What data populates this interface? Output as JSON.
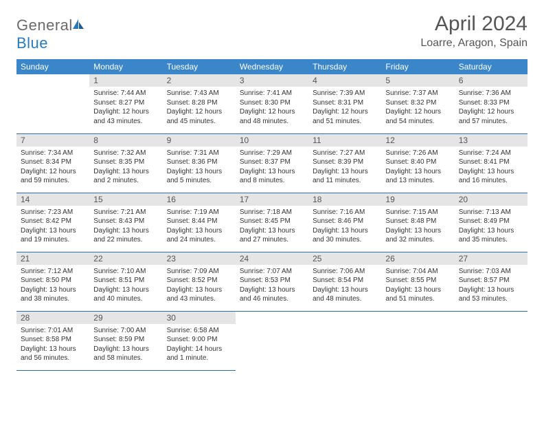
{
  "colors": {
    "header_bg": "#3a86c8",
    "header_text": "#ffffff",
    "daynum_bg": "#e5e5e5",
    "daynum_text": "#555555",
    "cell_border": "#2f6aa3",
    "body_text": "#333333",
    "title_text": "#555555",
    "logo_gray": "#6a6a6a",
    "logo_blue": "#2a7ab8",
    "page_bg": "#ffffff"
  },
  "fonts": {
    "family": "Arial, Helvetica, sans-serif",
    "month_title_size": 30,
    "location_size": 16,
    "weekday_size": 12,
    "daynum_size": 12,
    "body_size": 10
  },
  "logo": {
    "text_gray": "General",
    "text_blue": "Blue"
  },
  "title": "April 2024",
  "location": "Loarre, Aragon, Spain",
  "weekdays": [
    "Sunday",
    "Monday",
    "Tuesday",
    "Wednesday",
    "Thursday",
    "Friday",
    "Saturday"
  ],
  "calendar": {
    "type": "table",
    "columns": 7,
    "rows": 5,
    "cell_border_color": "#2f6aa3",
    "daynum_bg": "#e5e5e5"
  },
  "weeks": [
    [
      null,
      {
        "n": "1",
        "sr": "Sunrise: 7:44 AM",
        "ss": "Sunset: 8:27 PM",
        "d1": "Daylight: 12 hours",
        "d2": "and 43 minutes."
      },
      {
        "n": "2",
        "sr": "Sunrise: 7:43 AM",
        "ss": "Sunset: 8:28 PM",
        "d1": "Daylight: 12 hours",
        "d2": "and 45 minutes."
      },
      {
        "n": "3",
        "sr": "Sunrise: 7:41 AM",
        "ss": "Sunset: 8:30 PM",
        "d1": "Daylight: 12 hours",
        "d2": "and 48 minutes."
      },
      {
        "n": "4",
        "sr": "Sunrise: 7:39 AM",
        "ss": "Sunset: 8:31 PM",
        "d1": "Daylight: 12 hours",
        "d2": "and 51 minutes."
      },
      {
        "n": "5",
        "sr": "Sunrise: 7:37 AM",
        "ss": "Sunset: 8:32 PM",
        "d1": "Daylight: 12 hours",
        "d2": "and 54 minutes."
      },
      {
        "n": "6",
        "sr": "Sunrise: 7:36 AM",
        "ss": "Sunset: 8:33 PM",
        "d1": "Daylight: 12 hours",
        "d2": "and 57 minutes."
      }
    ],
    [
      {
        "n": "7",
        "sr": "Sunrise: 7:34 AM",
        "ss": "Sunset: 8:34 PM",
        "d1": "Daylight: 12 hours",
        "d2": "and 59 minutes."
      },
      {
        "n": "8",
        "sr": "Sunrise: 7:32 AM",
        "ss": "Sunset: 8:35 PM",
        "d1": "Daylight: 13 hours",
        "d2": "and 2 minutes."
      },
      {
        "n": "9",
        "sr": "Sunrise: 7:31 AM",
        "ss": "Sunset: 8:36 PM",
        "d1": "Daylight: 13 hours",
        "d2": "and 5 minutes."
      },
      {
        "n": "10",
        "sr": "Sunrise: 7:29 AM",
        "ss": "Sunset: 8:37 PM",
        "d1": "Daylight: 13 hours",
        "d2": "and 8 minutes."
      },
      {
        "n": "11",
        "sr": "Sunrise: 7:27 AM",
        "ss": "Sunset: 8:39 PM",
        "d1": "Daylight: 13 hours",
        "d2": "and 11 minutes."
      },
      {
        "n": "12",
        "sr": "Sunrise: 7:26 AM",
        "ss": "Sunset: 8:40 PM",
        "d1": "Daylight: 13 hours",
        "d2": "and 13 minutes."
      },
      {
        "n": "13",
        "sr": "Sunrise: 7:24 AM",
        "ss": "Sunset: 8:41 PM",
        "d1": "Daylight: 13 hours",
        "d2": "and 16 minutes."
      }
    ],
    [
      {
        "n": "14",
        "sr": "Sunrise: 7:23 AM",
        "ss": "Sunset: 8:42 PM",
        "d1": "Daylight: 13 hours",
        "d2": "and 19 minutes."
      },
      {
        "n": "15",
        "sr": "Sunrise: 7:21 AM",
        "ss": "Sunset: 8:43 PM",
        "d1": "Daylight: 13 hours",
        "d2": "and 22 minutes."
      },
      {
        "n": "16",
        "sr": "Sunrise: 7:19 AM",
        "ss": "Sunset: 8:44 PM",
        "d1": "Daylight: 13 hours",
        "d2": "and 24 minutes."
      },
      {
        "n": "17",
        "sr": "Sunrise: 7:18 AM",
        "ss": "Sunset: 8:45 PM",
        "d1": "Daylight: 13 hours",
        "d2": "and 27 minutes."
      },
      {
        "n": "18",
        "sr": "Sunrise: 7:16 AM",
        "ss": "Sunset: 8:46 PM",
        "d1": "Daylight: 13 hours",
        "d2": "and 30 minutes."
      },
      {
        "n": "19",
        "sr": "Sunrise: 7:15 AM",
        "ss": "Sunset: 8:48 PM",
        "d1": "Daylight: 13 hours",
        "d2": "and 32 minutes."
      },
      {
        "n": "20",
        "sr": "Sunrise: 7:13 AM",
        "ss": "Sunset: 8:49 PM",
        "d1": "Daylight: 13 hours",
        "d2": "and 35 minutes."
      }
    ],
    [
      {
        "n": "21",
        "sr": "Sunrise: 7:12 AM",
        "ss": "Sunset: 8:50 PM",
        "d1": "Daylight: 13 hours",
        "d2": "and 38 minutes."
      },
      {
        "n": "22",
        "sr": "Sunrise: 7:10 AM",
        "ss": "Sunset: 8:51 PM",
        "d1": "Daylight: 13 hours",
        "d2": "and 40 minutes."
      },
      {
        "n": "23",
        "sr": "Sunrise: 7:09 AM",
        "ss": "Sunset: 8:52 PM",
        "d1": "Daylight: 13 hours",
        "d2": "and 43 minutes."
      },
      {
        "n": "24",
        "sr": "Sunrise: 7:07 AM",
        "ss": "Sunset: 8:53 PM",
        "d1": "Daylight: 13 hours",
        "d2": "and 46 minutes."
      },
      {
        "n": "25",
        "sr": "Sunrise: 7:06 AM",
        "ss": "Sunset: 8:54 PM",
        "d1": "Daylight: 13 hours",
        "d2": "and 48 minutes."
      },
      {
        "n": "26",
        "sr": "Sunrise: 7:04 AM",
        "ss": "Sunset: 8:55 PM",
        "d1": "Daylight: 13 hours",
        "d2": "and 51 minutes."
      },
      {
        "n": "27",
        "sr": "Sunrise: 7:03 AM",
        "ss": "Sunset: 8:57 PM",
        "d1": "Daylight: 13 hours",
        "d2": "and 53 minutes."
      }
    ],
    [
      {
        "n": "28",
        "sr": "Sunrise: 7:01 AM",
        "ss": "Sunset: 8:58 PM",
        "d1": "Daylight: 13 hours",
        "d2": "and 56 minutes."
      },
      {
        "n": "29",
        "sr": "Sunrise: 7:00 AM",
        "ss": "Sunset: 8:59 PM",
        "d1": "Daylight: 13 hours",
        "d2": "and 58 minutes."
      },
      {
        "n": "30",
        "sr": "Sunrise: 6:58 AM",
        "ss": "Sunset: 9:00 PM",
        "d1": "Daylight: 14 hours",
        "d2": "and 1 minute."
      },
      null,
      null,
      null,
      null
    ]
  ]
}
